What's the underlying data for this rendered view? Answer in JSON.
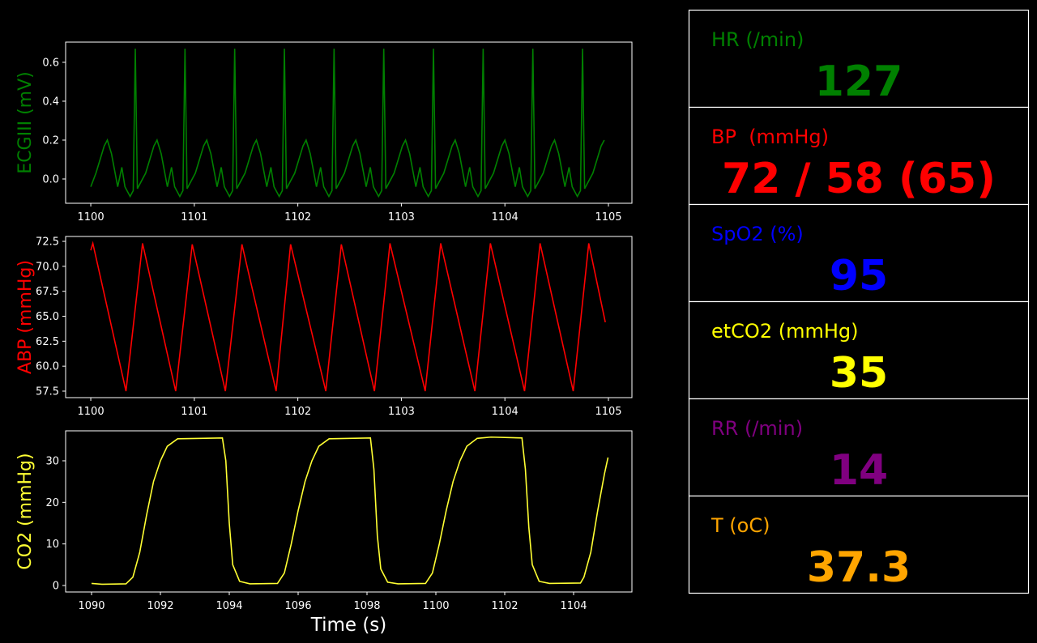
{
  "chart_data": [
    {
      "type": "line",
      "ylabel": "ECGIII (mV)",
      "color": "#008000",
      "x": [
        1100.0,
        1100.05,
        1100.13,
        1100.16,
        1100.2,
        1100.26,
        1100.3,
        1100.33,
        1100.38,
        1100.41,
        1100.43,
        1100.45,
        1100.53,
        1100.61,
        1100.64,
        1100.68,
        1100.74,
        1100.78,
        1100.81,
        1100.86,
        1100.89,
        1100.91,
        1100.93,
        1101.01,
        1101.09,
        1101.12,
        1101.16,
        1101.22,
        1101.26,
        1101.29,
        1101.34,
        1101.37,
        1101.39,
        1101.41,
        1101.49,
        1101.57,
        1101.6,
        1101.64,
        1101.7,
        1101.74,
        1101.77,
        1101.82,
        1101.85,
        1101.87,
        1101.89,
        1101.97,
        1102.05,
        1102.08,
        1102.12,
        1102.18,
        1102.22,
        1102.25,
        1102.3,
        1102.33,
        1102.35,
        1102.37,
        1102.45,
        1102.53,
        1102.56,
        1102.6,
        1102.66,
        1102.7,
        1102.73,
        1102.78,
        1102.81,
        1102.83,
        1102.85,
        1102.93,
        1103.01,
        1103.04,
        1103.08,
        1103.14,
        1103.18,
        1103.21,
        1103.26,
        1103.29,
        1103.31,
        1103.33,
        1103.41,
        1103.49,
        1103.52,
        1103.56,
        1103.62,
        1103.66,
        1103.69,
        1103.74,
        1103.77,
        1103.79,
        1103.81,
        1103.89,
        1103.97,
        1104.0,
        1104.04,
        1104.1,
        1104.14,
        1104.17,
        1104.22,
        1104.25,
        1104.27,
        1104.29,
        1104.37,
        1104.45,
        1104.48,
        1104.52,
        1104.58,
        1104.62,
        1104.65,
        1104.7,
        1104.73,
        1104.75,
        1104.77,
        1104.85,
        1104.93,
        1104.96
      ],
      "values": [
        -0.04,
        0.03,
        0.17,
        0.2,
        0.13,
        -0.04,
        0.06,
        -0.04,
        -0.09,
        -0.06,
        0.67,
        -0.05,
        0.03,
        0.17,
        0.2,
        0.13,
        -0.04,
        0.06,
        -0.04,
        -0.09,
        -0.06,
        0.67,
        -0.05,
        0.03,
        0.17,
        0.2,
        0.13,
        -0.04,
        0.06,
        -0.04,
        -0.09,
        -0.06,
        0.67,
        -0.05,
        0.03,
        0.17,
        0.2,
        0.13,
        -0.04,
        0.06,
        -0.04,
        -0.09,
        -0.06,
        0.67,
        -0.05,
        0.03,
        0.17,
        0.2,
        0.13,
        -0.04,
        0.06,
        -0.04,
        -0.09,
        -0.06,
        0.67,
        -0.05,
        0.03,
        0.17,
        0.2,
        0.13,
        -0.04,
        0.06,
        -0.04,
        -0.09,
        -0.06,
        0.67,
        -0.05,
        0.03,
        0.17,
        0.2,
        0.13,
        -0.04,
        0.06,
        -0.04,
        -0.09,
        -0.06,
        0.67,
        -0.05,
        0.03,
        0.17,
        0.2,
        0.13,
        -0.04,
        0.06,
        -0.04,
        -0.09,
        -0.06,
        0.67,
        -0.05,
        0.03,
        0.17,
        0.2,
        0.13,
        -0.04,
        0.06,
        -0.04,
        -0.09,
        -0.06,
        0.67,
        -0.05,
        0.03,
        0.17,
        0.2,
        0.13,
        -0.04,
        0.06,
        -0.04,
        -0.09,
        -0.06,
        0.67,
        -0.05,
        0.03,
        0.17,
        0.2
      ],
      "xlim": [
        1099.757,
        1105.227
      ],
      "xticks": [
        1100,
        1101,
        1102,
        1103,
        1104,
        1105
      ],
      "ylim": [
        -0.125,
        0.704
      ],
      "yticks": [
        {
          "value": 0,
          "label": "0.0"
        },
        0.2,
        0.4,
        0.6
      ]
    },
    {
      "type": "line",
      "ylabel": "ABP (mmHg)",
      "color": "#ff0000",
      "x": [
        1100.0,
        1100.02,
        1100.34,
        1100.5,
        1100.82,
        1100.98,
        1101.3,
        1101.46,
        1101.79,
        1101.93,
        1102.27,
        1102.42,
        1102.74,
        1102.89,
        1103.23,
        1103.38,
        1103.71,
        1103.86,
        1104.19,
        1104.34,
        1104.66,
        1104.81,
        1104.97
      ],
      "values": [
        71.6,
        72.3,
        57.5,
        72.3,
        57.5,
        72.2,
        57.5,
        72.2,
        57.5,
        72.2,
        57.5,
        72.2,
        57.5,
        72.3,
        57.5,
        72.3,
        57.5,
        72.3,
        57.5,
        72.3,
        57.5,
        72.3,
        64.4
      ],
      "xlim": [
        1099.757,
        1105.227
      ],
      "xticks": [
        1100,
        1101,
        1102,
        1103,
        1104,
        1105
      ],
      "ylim": [
        56.85,
        72.99
      ],
      "yticks": [
        57.5,
        {
          "value": 60,
          "label": "60.0"
        },
        62.5,
        {
          "value": 65,
          "label": "65.0"
        },
        67.5,
        {
          "value": 70,
          "label": "70.0"
        },
        72.5
      ]
    },
    {
      "type": "line",
      "ylabel": "CO2 (mmHg)",
      "xlabel": "Time (s)",
      "color": "#ffff33",
      "x": [
        1090,
        1090.3,
        1091.0,
        1091.2,
        1091.4,
        1091.6,
        1091.8,
        1092.0,
        1092.2,
        1092.5,
        1093.8,
        1093.9,
        1094.0,
        1094.1,
        1094.3,
        1094.6,
        1095.4,
        1095.6,
        1095.8,
        1096.0,
        1096.2,
        1096.4,
        1096.6,
        1096.9,
        1098.1,
        1098.2,
        1098.3,
        1098.4,
        1098.6,
        1098.9,
        1099.7,
        1099.9,
        1100.1,
        1100.3,
        1100.5,
        1100.7,
        1100.9,
        1101.2,
        1101.6,
        1102.5,
        1102.6,
        1102.7,
        1102.8,
        1103.0,
        1103.3,
        1104.2,
        1104.3,
        1104.5,
        1104.7,
        1104.9,
        1105.0
      ],
      "values": [
        0.5,
        0.3,
        0.4,
        2,
        8,
        17,
        25,
        30,
        33.5,
        35.3,
        35.5,
        30,
        15,
        5,
        1,
        0.4,
        0.5,
        3,
        10,
        18,
        25,
        30,
        33.5,
        35.3,
        35.5,
        28,
        12,
        4,
        0.8,
        0.4,
        0.5,
        3,
        10,
        18,
        25,
        30,
        33.5,
        35.4,
        35.7,
        35.5,
        28,
        14,
        5,
        1,
        0.5,
        0.6,
        2,
        8,
        18,
        27,
        30.8
      ],
      "xlim": [
        1089.247,
        1105.694
      ],
      "xticks": [
        1090,
        1092,
        1094,
        1096,
        1098,
        1100,
        1102,
        1104
      ],
      "ylim": [
        -1.56,
        37.21
      ],
      "yticks": [
        0,
        10,
        20,
        30
      ]
    }
  ],
  "vitals": [
    {
      "label": "HR (/min)",
      "value": 127,
      "color": "#008000"
    },
    {
      "label": "BP  (mmHg)",
      "value": "72 / 58 (65)",
      "color": "#ff0000"
    },
    {
      "label": "SpO2 (%)",
      "value": 95,
      "color": "#0000ff"
    },
    {
      "label": "etCO2 (mmHg)",
      "value": 35,
      "color": "#ffff00"
    },
    {
      "label": "RR (/min)",
      "value": 14,
      "color": "#800080"
    },
    {
      "label": "T (oC)",
      "value": 37.3,
      "color": "#ffa500"
    }
  ]
}
